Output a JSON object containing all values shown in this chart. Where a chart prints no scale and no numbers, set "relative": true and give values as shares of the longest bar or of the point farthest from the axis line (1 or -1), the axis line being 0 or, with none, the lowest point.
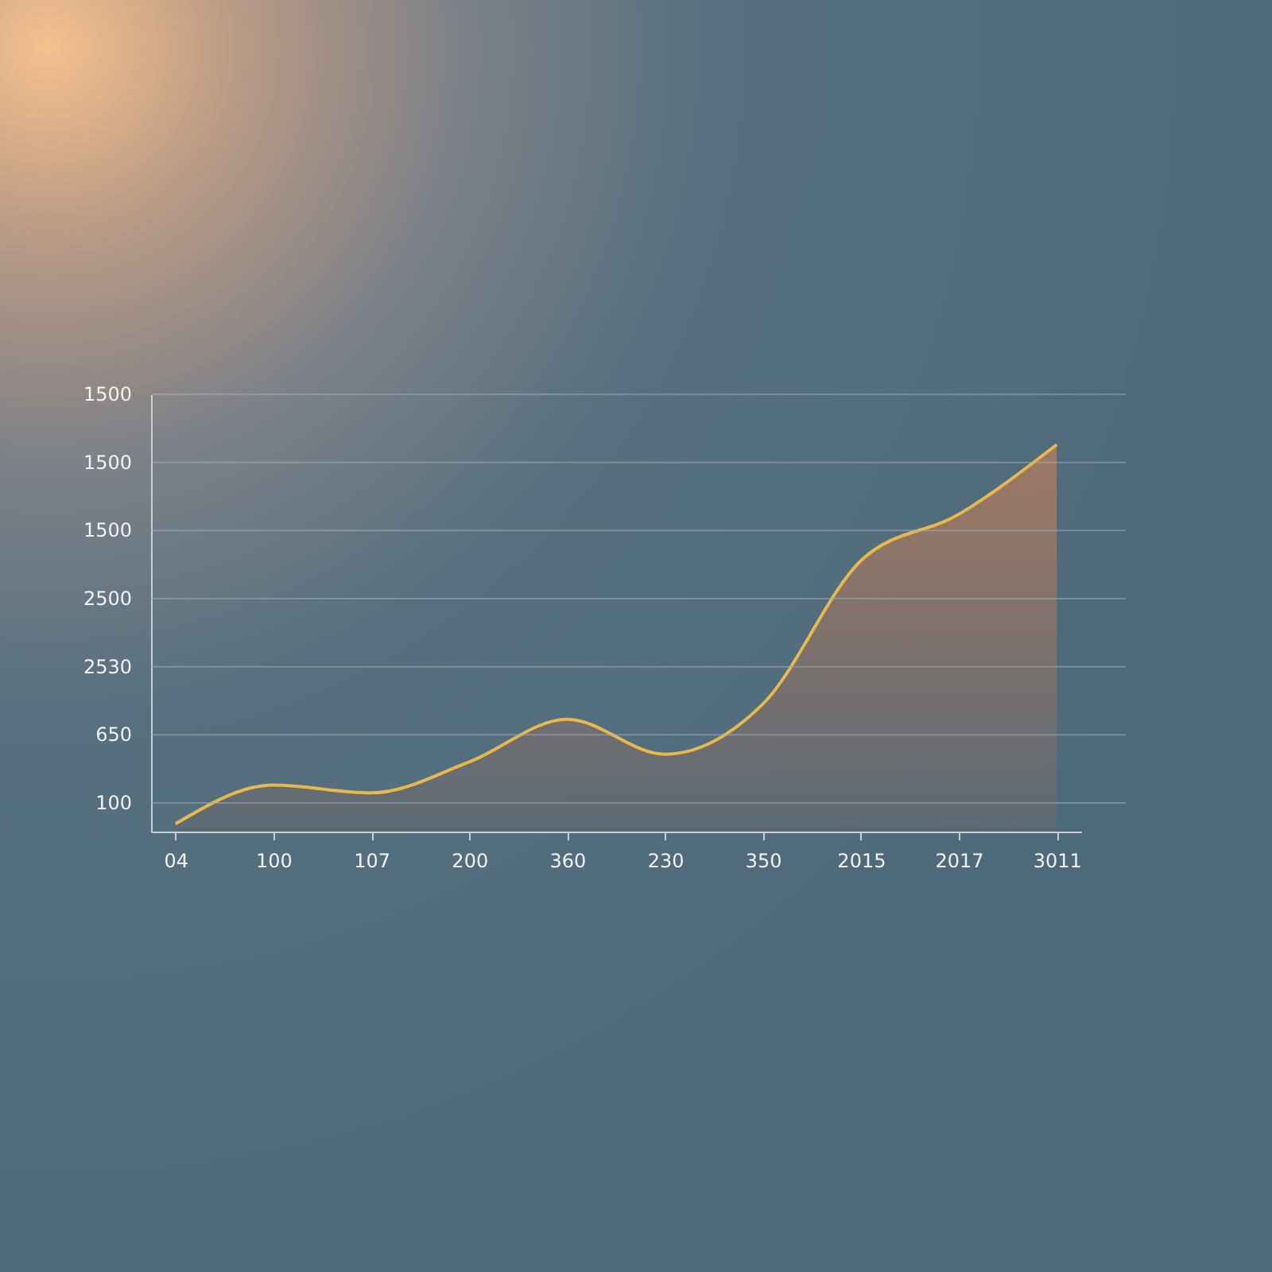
{
  "chart_data": {
    "type": "area",
    "relative": true,
    "categories": [
      "04",
      "100",
      "107",
      "200",
      "360",
      "230",
      "350",
      "2015",
      "2017",
      "3011"
    ],
    "series": [
      {
        "color": "#e8b84a",
        "values": [
          0.02,
          0.12,
          0.1,
          0.18,
          0.29,
          0.2,
          0.33,
          0.7,
          0.82,
          1
        ]
      }
    ],
    "annotations": [
      "1500",
      "1500",
      "1500",
      "2500",
      "2530",
      "650",
      "100"
    ],
    "grid": "y"
  }
}
